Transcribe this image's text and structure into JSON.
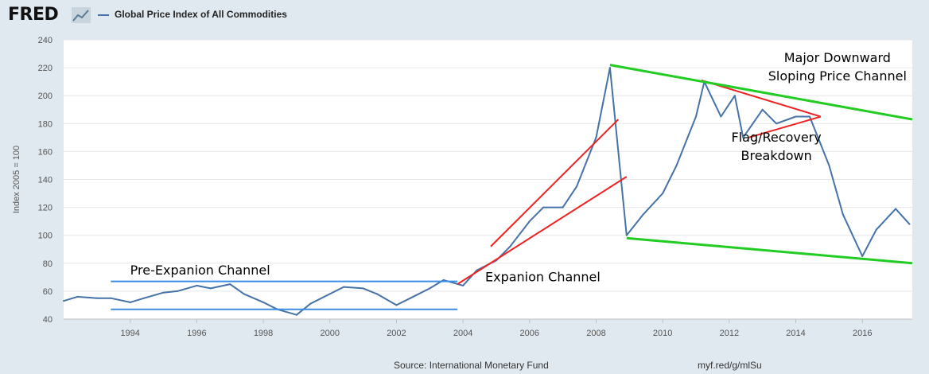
{
  "header": {
    "logo_text": "FRED",
    "logo_icon": "chart-line-icon",
    "legend_series_name": "Global Price Index of All Commodities"
  },
  "footer": {
    "source": "Source: International Monetary Fund",
    "link": "myf.red/g/mlSu"
  },
  "colors": {
    "background": "#e1e9f0",
    "plot_background": "#ffffff",
    "series": "#4572a7",
    "channel_blue": "#3a8ee6",
    "channel_red": "#ee2222",
    "channel_green": "#22cc22"
  },
  "chart_data": {
    "type": "line",
    "title": "Global Price Index of All Commodities",
    "ylabel": "Index 2005 = 100",
    "xlabel": "",
    "ylim": [
      40,
      240
    ],
    "xlim": [
      "1992-01",
      "2017-07"
    ],
    "yticks": [
      40,
      60,
      80,
      100,
      120,
      140,
      160,
      180,
      200,
      220,
      240
    ],
    "xticks": [
      "1994",
      "1996",
      "1998",
      "2000",
      "2002",
      "2004",
      "2006",
      "2008",
      "2010",
      "2012",
      "2014",
      "2016"
    ],
    "grid": "horizontal",
    "series": [
      {
        "name": "Global Price Index of All Commodities",
        "x": [
          "1992-01",
          "1992-06",
          "1993-01",
          "1993-06",
          "1994-01",
          "1994-06",
          "1995-01",
          "1995-06",
          "1996-01",
          "1996-06",
          "1997-01",
          "1997-06",
          "1998-01",
          "1998-06",
          "1999-01",
          "1999-06",
          "2000-01",
          "2000-06",
          "2001-01",
          "2001-06",
          "2002-01",
          "2002-06",
          "2003-01",
          "2003-06",
          "2004-01",
          "2004-06",
          "2005-01",
          "2005-06",
          "2006-01",
          "2006-06",
          "2007-01",
          "2007-06",
          "2008-01",
          "2008-06",
          "2008-12",
          "2009-06",
          "2010-01",
          "2010-06",
          "2011-01",
          "2011-04",
          "2011-10",
          "2012-03",
          "2012-06",
          "2013-01",
          "2013-06",
          "2014-01",
          "2014-06",
          "2015-01",
          "2015-06",
          "2016-01",
          "2016-06",
          "2017-01",
          "2017-06"
        ],
        "values": [
          53,
          56,
          55,
          55,
          52,
          55,
          59,
          60,
          64,
          62,
          65,
          58,
          52,
          47,
          43,
          51,
          58,
          63,
          62,
          58,
          50,
          55,
          62,
          68,
          64,
          75,
          82,
          92,
          110,
          120,
          120,
          135,
          170,
          220,
          100,
          115,
          130,
          150,
          185,
          210,
          185,
          200,
          170,
          190,
          180,
          185,
          185,
          150,
          115,
          85,
          104,
          119,
          108
        ]
      }
    ],
    "annotations": [
      {
        "text": "Pre-Expanion Channel",
        "x": "1994-01",
        "y": 72,
        "color": "#000000"
      },
      {
        "text": "Expanion Channel",
        "x": "2004-09",
        "y": 67,
        "color": "#000000"
      },
      {
        "text": "Flag/Recovery",
        "x": "2013-06",
        "y": 167,
        "color": "#000000"
      },
      {
        "text": "Breakdown",
        "x": "2013-06",
        "y": 154,
        "color": "#000000"
      },
      {
        "text": "Major Downward",
        "x": "2015-04",
        "y": 224,
        "color": "#000000"
      },
      {
        "text": "Sloping Price Channel",
        "x": "2015-04",
        "y": 211,
        "color": "#000000"
      }
    ],
    "trendlines": [
      {
        "name": "pre-expansion-channel-top",
        "color": "#3a8ee6",
        "x": [
          "1993-06",
          "2003-11"
        ],
        "y": [
          67,
          67
        ]
      },
      {
        "name": "pre-expansion-channel-bottom",
        "color": "#3a8ee6",
        "x": [
          "1993-06",
          "2003-11"
        ],
        "y": [
          47,
          47
        ]
      },
      {
        "name": "expansion-channel-upper",
        "color": "#ee2222",
        "x": [
          "2004-11",
          "2008-09"
        ],
        "y": [
          92,
          183
        ]
      },
      {
        "name": "expansion-channel-lower",
        "color": "#ee2222",
        "x": [
          "2003-11",
          "2008-12"
        ],
        "y": [
          65,
          142
        ]
      },
      {
        "name": "flag-upper",
        "color": "#ee2222",
        "x": [
          "2011-03",
          "2014-10"
        ],
        "y": [
          211,
          185
        ]
      },
      {
        "name": "flag-lower",
        "color": "#ee2222",
        "x": [
          "2012-08",
          "2014-10"
        ],
        "y": [
          170,
          185
        ]
      },
      {
        "name": "major-channel-upper",
        "color": "#22cc22",
        "x": [
          "2008-06",
          "2017-07"
        ],
        "y": [
          222,
          183
        ]
      },
      {
        "name": "major-channel-lower",
        "color": "#22cc22",
        "x": [
          "2008-12",
          "2017-07"
        ],
        "y": [
          98,
          80
        ]
      }
    ]
  }
}
